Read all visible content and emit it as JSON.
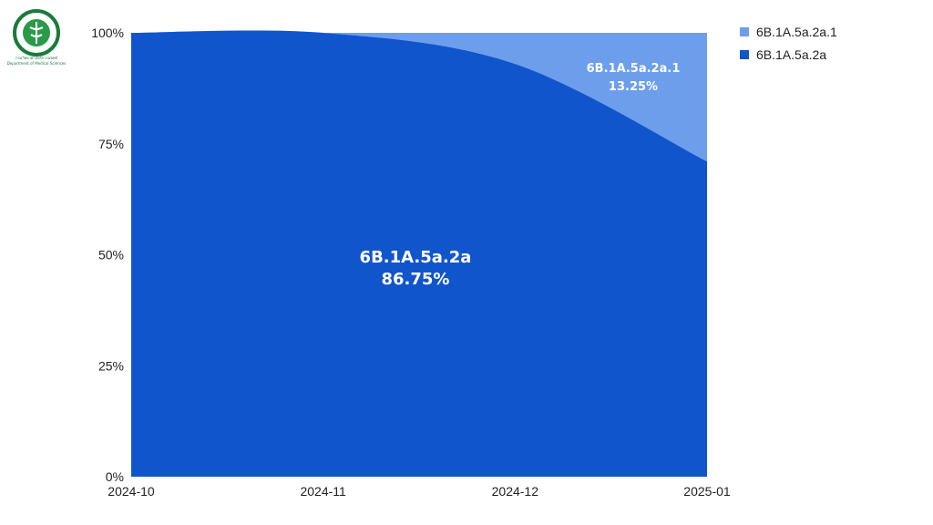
{
  "logo": {
    "name": "Department of Medical Sciences emblem",
    "text_top": "กรมวิทยาศาสตร์การแพทย์",
    "text_bottom": "Department of Medical Sciences"
  },
  "chart_data": {
    "type": "area",
    "stacked": "percent",
    "x": [
      "2024-10",
      "2024-11",
      "2024-12",
      "2025-01"
    ],
    "ylim": [
      0,
      100
    ],
    "yticks": [
      "0%",
      "25%",
      "50%",
      "75%",
      "100%"
    ],
    "grid": false,
    "legend_position": "top-right",
    "series": [
      {
        "name": "6B.1A.5a.2a.1",
        "color": "#6d9eeb",
        "values": [
          0,
          0,
          7,
          29
        ]
      },
      {
        "name": "6B.1A.5a.2a",
        "color": "#1155cc",
        "values": [
          100,
          100,
          93,
          71
        ]
      }
    ],
    "annotations": [
      {
        "series": "6B.1A.5a.2a.1",
        "label": "6B.1A.5a.2a.1",
        "value_text": "13.25%"
      },
      {
        "series": "6B.1A.5a.2a",
        "label": "6B.1A.5a.2a",
        "value_text": "86.75%"
      }
    ]
  }
}
